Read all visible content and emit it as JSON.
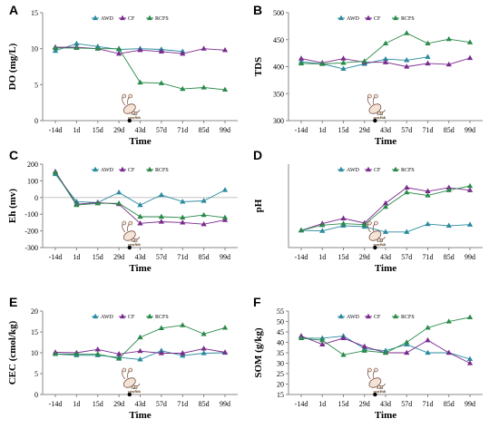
{
  "colors": {
    "AWD": "#2a8a9e",
    "CF": "#7a2a8e",
    "RCFS": "#2a8a4a",
    "axis": "#888888",
    "zero_line": "#bbbbbb"
  },
  "legend": [
    "AWD",
    "CF",
    "RCFS"
  ],
  "annotation": {
    "line1": "Add",
    "line2": "crayfish",
    "at_category": "29d",
    "icon": "crayfish-icon"
  },
  "chart_data": [
    {
      "panel": "A",
      "type": "line",
      "ylabel": "DO (mg/L)",
      "xlabel": "Time",
      "categories": [
        "-14d",
        "1d",
        "15d",
        "29d",
        "43d",
        "57d",
        "71d",
        "85d",
        "99d"
      ],
      "ylim": [
        0,
        15
      ],
      "yticks": [
        0,
        5,
        10,
        15
      ],
      "series": [
        {
          "name": "AWD",
          "values": [
            9.7,
            10.7,
            10.3,
            9.9,
            10.0,
            9.9,
            9.6,
            null,
            null
          ]
        },
        {
          "name": "CF",
          "values": [
            10.2,
            10.2,
            10.0,
            9.3,
            9.8,
            9.6,
            9.3,
            10.0,
            9.8
          ]
        },
        {
          "name": "RCFS",
          "values": [
            10.1,
            10.1,
            10.0,
            10.0,
            5.3,
            5.2,
            4.4,
            4.6,
            4.3
          ]
        }
      ]
    },
    {
      "panel": "B",
      "type": "line",
      "ylabel": "TDS",
      "xlabel": "Time",
      "categories": [
        "-14d",
        "1d",
        "15d",
        "29d",
        "43d",
        "57d",
        "71d",
        "85d",
        "99d"
      ],
      "ylim": [
        300,
        500
      ],
      "yticks": [
        300,
        350,
        400,
        450,
        500
      ],
      "series": [
        {
          "name": "AWD",
          "values": [
            409,
            405,
            396,
            405,
            414,
            412,
            418,
            null,
            null
          ]
        },
        {
          "name": "CF",
          "values": [
            415,
            407,
            415,
            408,
            408,
            400,
            406,
            404,
            416
          ]
        },
        {
          "name": "RCFS",
          "values": [
            406,
            405,
            407,
            410,
            443,
            462,
            443,
            451,
            445
          ]
        }
      ]
    },
    {
      "panel": "C",
      "type": "line",
      "ylabel": "Eh (mv)",
      "xlabel": "Time",
      "categories": [
        "-14d",
        "1d",
        "15d",
        "29d",
        "43d",
        "57d",
        "71d",
        "85d",
        "99d"
      ],
      "ylim": [
        -300,
        200
      ],
      "yticks": [
        -300,
        -200,
        -100,
        0,
        100,
        200
      ],
      "zero_line": true,
      "series": [
        {
          "name": "AWD",
          "values": [
            140,
            -25,
            -30,
            30,
            -45,
            15,
            -25,
            -20,
            45
          ]
        },
        {
          "name": "CF",
          "values": [
            155,
            -40,
            -30,
            -40,
            -155,
            -145,
            -150,
            -160,
            -135
          ]
        },
        {
          "name": "RCFS",
          "values": [
            150,
            -45,
            -35,
            -35,
            -115,
            -115,
            -120,
            -105,
            -120
          ]
        }
      ]
    },
    {
      "panel": "D",
      "type": "line",
      "ylabel": "pH",
      "xlabel": "Time",
      "categories": [
        "-14d",
        "1d",
        "15d",
        "29d",
        "43d",
        "57d",
        "71d",
        "85d",
        "99d"
      ],
      "ylim": [
        null,
        null
      ],
      "yticks": [],
      "series": [
        {
          "name": "AWD",
          "values": [
            7.63,
            7.62,
            7.72,
            7.7,
            7.6,
            7.6,
            7.75,
            7.72,
            7.74
          ]
        },
        {
          "name": "CF",
          "values": [
            7.63,
            7.76,
            7.86,
            7.77,
            8.15,
            8.45,
            8.38,
            8.45,
            8.4
          ]
        },
        {
          "name": "RCFS",
          "values": [
            7.63,
            7.73,
            7.76,
            7.74,
            8.08,
            8.36,
            8.3,
            8.4,
            8.48
          ]
        }
      ]
    },
    {
      "panel": "E",
      "type": "line",
      "ylabel": "CEC (cmol/kg)",
      "xlabel": "Time",
      "categories": [
        "-14d",
        "1d",
        "15d",
        "29d",
        "43d",
        "57d",
        "71d",
        "85d",
        "99d"
      ],
      "ylim": [
        0,
        20
      ],
      "yticks": [
        0,
        5,
        10,
        15,
        20
      ],
      "series": [
        {
          "name": "AWD",
          "values": [
            9.7,
            9.4,
            9.4,
            8.9,
            8.4,
            10.5,
            9.3,
            9.9,
            10.0
          ]
        },
        {
          "name": "CF",
          "values": [
            10.1,
            10.0,
            10.8,
            9.7,
            10.4,
            9.9,
            9.9,
            11.0,
            10.1
          ]
        },
        {
          "name": "RCFS",
          "values": [
            9.7,
            9.7,
            9.7,
            8.6,
            13.7,
            15.9,
            16.6,
            14.5,
            16.0
          ]
        }
      ]
    },
    {
      "panel": "F",
      "type": "line",
      "ylabel": "SOM (g/kg)",
      "xlabel": "Time",
      "categories": [
        "-14d",
        "1d",
        "15d",
        "29d",
        "43d",
        "57d",
        "71d",
        "85d",
        "99d"
      ],
      "ylim": [
        15,
        55
      ],
      "yticks": [
        15,
        20,
        25,
        30,
        35,
        40,
        45,
        50,
        55
      ],
      "series": [
        {
          "name": "AWD",
          "values": [
            42,
            42,
            43,
            37,
            36,
            39,
            35,
            35,
            32
          ]
        },
        {
          "name": "CF",
          "values": [
            43,
            39,
            42,
            38,
            35,
            35,
            41,
            35,
            30
          ]
        },
        {
          "name": "RCFS",
          "values": [
            42,
            41,
            34,
            36,
            35,
            40,
            47,
            50,
            52
          ]
        }
      ]
    }
  ]
}
